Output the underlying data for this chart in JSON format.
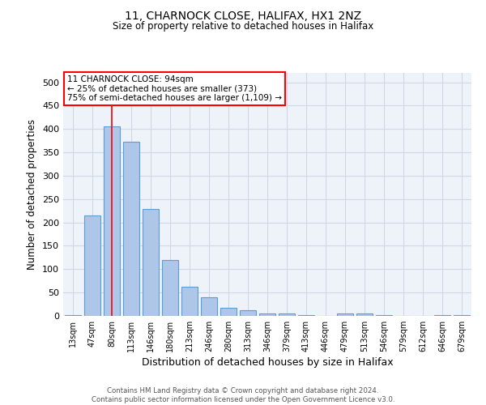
{
  "title1": "11, CHARNOCK CLOSE, HALIFAX, HX1 2NZ",
  "title2": "Size of property relative to detached houses in Halifax",
  "xlabel": "Distribution of detached houses by size in Halifax",
  "ylabel": "Number of detached properties",
  "categories": [
    "13sqm",
    "47sqm",
    "80sqm",
    "113sqm",
    "146sqm",
    "180sqm",
    "213sqm",
    "246sqm",
    "280sqm",
    "313sqm",
    "346sqm",
    "379sqm",
    "413sqm",
    "446sqm",
    "479sqm",
    "513sqm",
    "546sqm",
    "579sqm",
    "612sqm",
    "646sqm",
    "679sqm"
  ],
  "values": [
    2,
    215,
    405,
    372,
    229,
    120,
    63,
    40,
    18,
    13,
    5,
    6,
    1,
    0,
    5,
    6,
    1,
    0,
    0,
    1,
    2
  ],
  "bar_color": "#aec6e8",
  "bar_edge_color": "#5a9fd4",
  "bar_edge_width": 0.8,
  "grid_color": "#d0d8e8",
  "bg_color": "#eef2f9",
  "red_line_x": 2,
  "annotation_line1": "11 CHARNOCK CLOSE: 94sqm",
  "annotation_line2": "← 25% of detached houses are smaller (373)",
  "annotation_line3": "75% of semi-detached houses are larger (1,109) →",
  "footer_line1": "Contains HM Land Registry data © Crown copyright and database right 2024.",
  "footer_line2": "Contains public sector information licensed under the Open Government Licence v3.0.",
  "ylim": [
    0,
    520
  ],
  "yticks": [
    0,
    50,
    100,
    150,
    200,
    250,
    300,
    350,
    400,
    450,
    500
  ]
}
